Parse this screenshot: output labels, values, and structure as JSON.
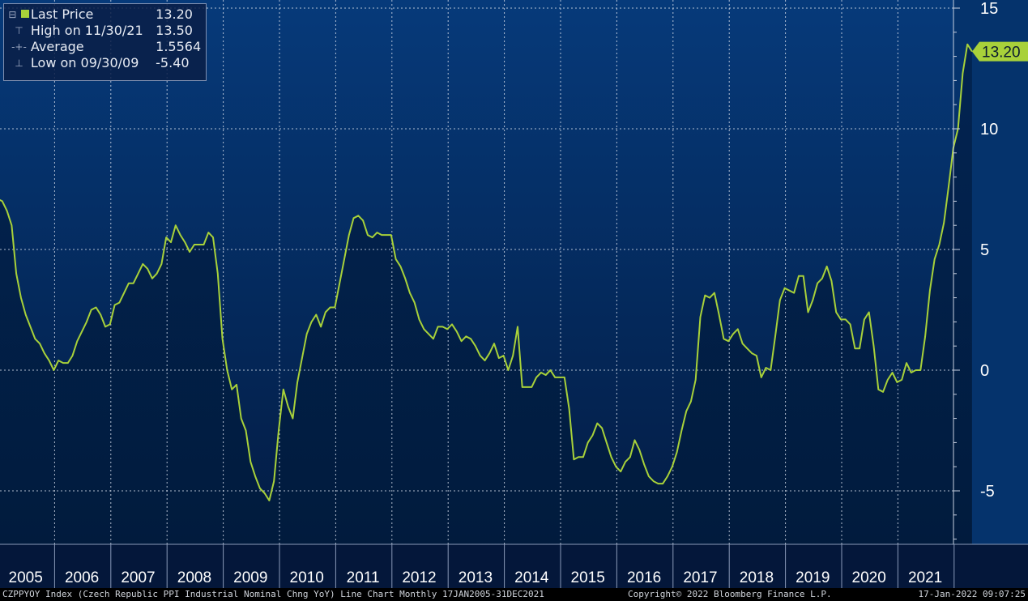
{
  "legend": {
    "rows": [
      {
        "label": "Last Price",
        "value": "13.20",
        "icon": "square-marker-icon"
      },
      {
        "label": "High on 11/30/21",
        "value": "13.50",
        "icon": "high-marker-icon"
      },
      {
        "label": "Average",
        "value": "1.5564",
        "icon": "average-marker-icon"
      },
      {
        "label": "Low on 09/30/09",
        "value": "-5.40",
        "icon": "low-marker-icon"
      }
    ]
  },
  "last_price_tag": "13.20",
  "footer": {
    "left": "CZPPYOY Index (Czech Republic PPI Industrial Nominal Chng YoY) Line Chart  Monthly 17JAN2005-31DEC2021",
    "center": "Copyright© 2022 Bloomberg Finance L.P.",
    "right": "17-Jan-2022 09:07:25"
  },
  "colors": {
    "line": "#a8d13a",
    "background_top": "#063a7a",
    "background_bottom": "#041a3a",
    "fill": "#001a3d",
    "grid": "#d0d8e6"
  },
  "chart_data": {
    "type": "area",
    "series": [
      {
        "name": "Last Price",
        "x_start": "2005-01",
        "frequency": "monthly",
        "values": [
          7.1,
          7.0,
          6.6,
          6.0,
          4.0,
          3.0,
          2.3,
          1.8,
          1.3,
          1.1,
          0.7,
          0.4,
          0.0,
          0.4,
          0.3,
          0.3,
          0.6,
          1.2,
          1.6,
          2.0,
          2.5,
          2.6,
          2.3,
          1.8,
          1.9,
          2.7,
          2.8,
          3.2,
          3.6,
          3.6,
          4.0,
          4.4,
          4.2,
          3.8,
          4.0,
          4.4,
          5.5,
          5.3,
          6.0,
          5.6,
          5.3,
          4.9,
          5.2,
          5.2,
          5.2,
          5.7,
          5.5,
          4.0,
          1.3,
          0.0,
          -0.8,
          -0.6,
          -2.0,
          -2.5,
          -3.8,
          -4.4,
          -4.9,
          -5.1,
          -5.4,
          -4.6,
          -2.5,
          -0.8,
          -1.5,
          -2.0,
          -0.5,
          0.5,
          1.5,
          2.0,
          2.3,
          1.8,
          2.4,
          2.6,
          2.6,
          3.6,
          4.6,
          5.6,
          6.3,
          6.4,
          6.2,
          5.6,
          5.5,
          5.7,
          5.6,
          5.6,
          5.6,
          4.6,
          4.3,
          3.8,
          3.2,
          2.8,
          2.1,
          1.7,
          1.5,
          1.3,
          1.8,
          1.8,
          1.7,
          1.9,
          1.6,
          1.2,
          1.4,
          1.3,
          1.0,
          0.6,
          0.4,
          0.7,
          1.1,
          0.5,
          0.6,
          0.0,
          0.6,
          1.8,
          -0.7,
          -0.7,
          -0.7,
          -0.3,
          -0.1,
          -0.2,
          0.0,
          -0.3,
          -0.3,
          -0.3,
          -1.6,
          -3.7,
          -3.6,
          -3.6,
          -3.0,
          -2.7,
          -2.2,
          -2.4,
          -3.0,
          -3.6,
          -4.0,
          -4.2,
          -3.8,
          -3.6,
          -2.9,
          -3.3,
          -3.9,
          -4.4,
          -4.6,
          -4.7,
          -4.7,
          -4.4,
          -4.0,
          -3.4,
          -2.5,
          -1.7,
          -1.3,
          -0.4,
          2.2,
          3.1,
          3.0,
          3.2,
          2.3,
          1.3,
          1.2,
          1.5,
          1.7,
          1.1,
          0.9,
          0.7,
          0.6,
          -0.3,
          0.1,
          0.0,
          1.4,
          2.9,
          3.4,
          3.3,
          3.2,
          3.9,
          3.9,
          2.4,
          2.9,
          3.6,
          3.8,
          4.3,
          3.7,
          2.4,
          2.1,
          2.1,
          1.9,
          0.9,
          0.9,
          2.1,
          2.4,
          1.0,
          -0.8,
          -0.9,
          -0.4,
          -0.1,
          -0.5,
          -0.4,
          0.3,
          -0.1,
          0.0,
          0.0,
          1.4,
          3.3,
          4.6,
          5.2,
          6.1,
          7.6,
          9.2,
          10.0,
          12.3,
          13.5,
          13.2
        ]
      }
    ],
    "x_ticks": [
      "2005",
      "2006",
      "2007",
      "2008",
      "2009",
      "2010",
      "2011",
      "2012",
      "2013",
      "2014",
      "2015",
      "2016",
      "2017",
      "2018",
      "2019",
      "2020",
      "2021"
    ],
    "y_ticks": [
      "15",
      "10",
      "5",
      "0",
      "-5"
    ],
    "ylim": [
      -7.3,
      15.0
    ],
    "grid": true,
    "legend_position": "top-left",
    "stats": {
      "last": 13.2,
      "high": 13.5,
      "average": 1.5564,
      "low": -5.4
    }
  }
}
